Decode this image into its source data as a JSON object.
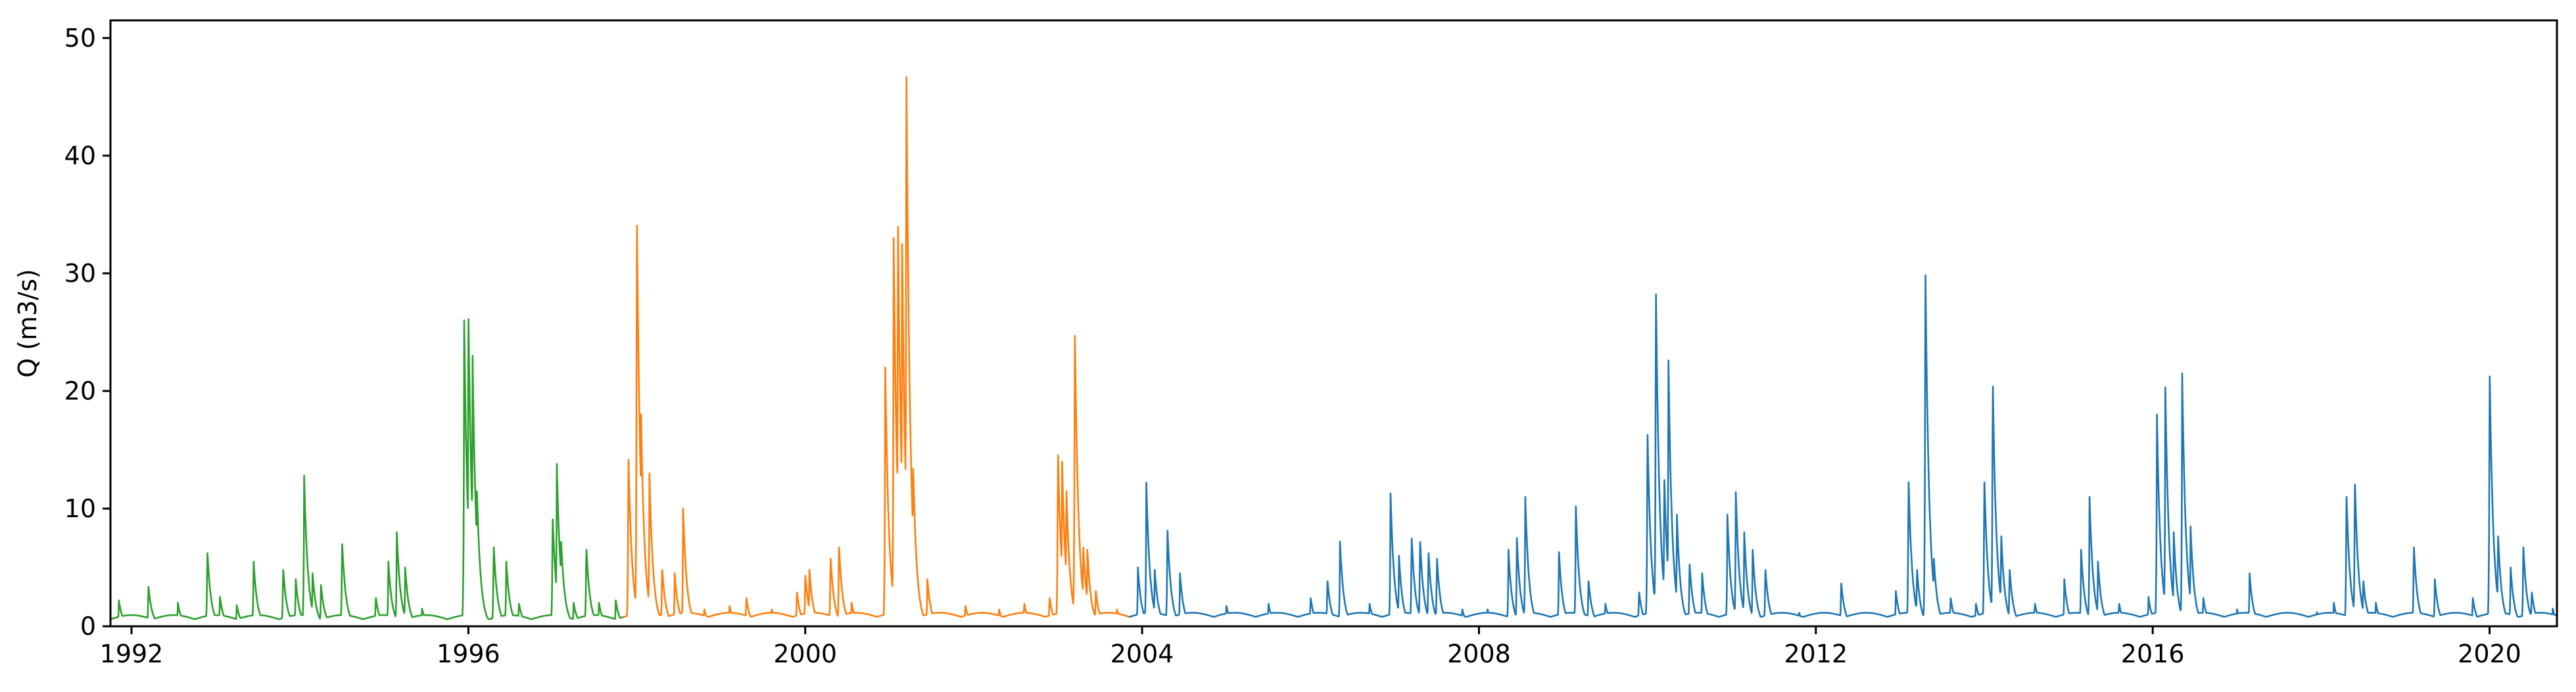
{
  "chart_data": {
    "type": "line",
    "title": "",
    "xlabel": "",
    "ylabel": "Q (m3/s)",
    "xlim": [
      1991.75,
      2020.8
    ],
    "ylim": [
      0,
      51.5
    ],
    "x_ticks": [
      1992,
      1996,
      2000,
      2004,
      2008,
      2012,
      2016,
      2020
    ],
    "x_tick_labels": [
      "1992",
      "1996",
      "2000",
      "2004",
      "2008",
      "2012",
      "2016",
      "2020"
    ],
    "y_ticks": [
      0,
      10,
      20,
      30,
      40,
      50
    ],
    "y_tick_labels": [
      "0",
      "10",
      "20",
      "30",
      "40",
      "50"
    ],
    "grid": false,
    "legend": "none",
    "series": [
      {
        "color": "#2ca02c",
        "x_range": [
          1991.75,
          1997.85
        ],
        "baseflow": 0.6,
        "recession_years": 0.045,
        "peaks": [
          [
            1991.85,
            2.2
          ],
          [
            1992.2,
            3.5
          ],
          [
            1992.55,
            2.0
          ],
          [
            1992.9,
            6.5
          ],
          [
            1993.05,
            2.5
          ],
          [
            1993.25,
            1.8
          ],
          [
            1993.45,
            5.5
          ],
          [
            1993.8,
            5.0
          ],
          [
            1993.95,
            4.0
          ],
          [
            1994.05,
            12.8
          ],
          [
            1994.15,
            4.5
          ],
          [
            1994.25,
            3.5
          ],
          [
            1994.5,
            7.3
          ],
          [
            1994.9,
            2.5
          ],
          [
            1995.05,
            5.5
          ],
          [
            1995.15,
            8.0
          ],
          [
            1995.25,
            5.0
          ],
          [
            1995.45,
            1.5
          ],
          [
            1995.95,
            26.0
          ],
          [
            1996.0,
            27.3
          ],
          [
            1996.05,
            23.0
          ],
          [
            1996.1,
            12.0
          ],
          [
            1996.3,
            7.0
          ],
          [
            1996.45,
            5.5
          ],
          [
            1996.6,
            2.0
          ],
          [
            1997.0,
            9.5
          ],
          [
            1997.05,
            13.8
          ],
          [
            1997.1,
            7.5
          ],
          [
            1997.25,
            2.0
          ],
          [
            1997.4,
            6.8
          ],
          [
            1997.55,
            2.0
          ],
          [
            1997.75,
            2.2
          ]
        ]
      },
      {
        "color": "#ff7f0e",
        "x_range": [
          1997.85,
          2003.85
        ],
        "baseflow": 0.8,
        "recession_years": 0.045,
        "peaks": [
          [
            1997.9,
            14.8
          ],
          [
            1998.0,
            35.6
          ],
          [
            1998.05,
            18.0
          ],
          [
            1998.15,
            13.0
          ],
          [
            1998.3,
            5.0
          ],
          [
            1998.45,
            4.5
          ],
          [
            1998.55,
            10.0
          ],
          [
            1998.8,
            1.5
          ],
          [
            1999.1,
            1.8
          ],
          [
            1999.3,
            2.5
          ],
          [
            1999.6,
            1.5
          ],
          [
            1999.9,
            3.0
          ],
          [
            2000.0,
            4.5
          ],
          [
            2000.05,
            4.8
          ],
          [
            2000.3,
            6.0
          ],
          [
            2000.4,
            7.0
          ],
          [
            2000.55,
            2.0
          ],
          [
            2000.95,
            22.0
          ],
          [
            2001.05,
            33.0
          ],
          [
            2001.1,
            35.5
          ],
          [
            2001.15,
            32.5
          ],
          [
            2001.2,
            48.8
          ],
          [
            2001.28,
            14.0
          ],
          [
            2001.45,
            4.0
          ],
          [
            2001.9,
            1.8
          ],
          [
            2002.3,
            1.5
          ],
          [
            2002.6,
            2.0
          ],
          [
            2002.9,
            2.5
          ],
          [
            2003.0,
            15.2
          ],
          [
            2003.05,
            14.0
          ],
          [
            2003.1,
            12.0
          ],
          [
            2003.2,
            25.8
          ],
          [
            2003.3,
            7.0
          ],
          [
            2003.35,
            6.5
          ],
          [
            2003.45,
            3.0
          ],
          [
            2003.7,
            1.5
          ]
        ]
      },
      {
        "color": "#1f77b4",
        "x_range": [
          2003.85,
          2020.8
        ],
        "baseflow": 0.8,
        "recession_years": 0.045,
        "peaks": [
          [
            2003.95,
            5.0
          ],
          [
            2004.05,
            12.2
          ],
          [
            2004.15,
            4.8
          ],
          [
            2004.3,
            8.5
          ],
          [
            2004.45,
            4.5
          ],
          [
            2005.0,
            1.8
          ],
          [
            2005.5,
            2.0
          ],
          [
            2006.0,
            2.5
          ],
          [
            2006.2,
            4.0
          ],
          [
            2006.35,
            7.2
          ],
          [
            2006.7,
            2.0
          ],
          [
            2006.95,
            11.3
          ],
          [
            2007.05,
            6.0
          ],
          [
            2007.2,
            7.8
          ],
          [
            2007.3,
            7.5
          ],
          [
            2007.4,
            6.5
          ],
          [
            2007.5,
            6.0
          ],
          [
            2007.8,
            1.5
          ],
          [
            2008.1,
            1.5
          ],
          [
            2008.35,
            6.5
          ],
          [
            2008.45,
            7.5
          ],
          [
            2008.55,
            11.0
          ],
          [
            2008.95,
            6.3
          ],
          [
            2009.15,
            10.2
          ],
          [
            2009.3,
            4.0
          ],
          [
            2009.5,
            2.0
          ],
          [
            2009.9,
            3.0
          ],
          [
            2010.0,
            17.0
          ],
          [
            2010.1,
            29.5
          ],
          [
            2010.2,
            13.0
          ],
          [
            2010.25,
            22.6
          ],
          [
            2010.35,
            9.5
          ],
          [
            2010.5,
            5.5
          ],
          [
            2010.65,
            4.5
          ],
          [
            2010.95,
            9.5
          ],
          [
            2011.05,
            11.4
          ],
          [
            2011.15,
            8.0
          ],
          [
            2011.25,
            6.5
          ],
          [
            2011.4,
            5.0
          ],
          [
            2011.8,
            1.2
          ],
          [
            2012.3,
            3.8
          ],
          [
            2012.6,
            1.2
          ],
          [
            2012.95,
            3.0
          ],
          [
            2013.1,
            12.8
          ],
          [
            2013.2,
            5.0
          ],
          [
            2013.3,
            31.2
          ],
          [
            2013.4,
            6.0
          ],
          [
            2013.6,
            2.5
          ],
          [
            2013.9,
            2.0
          ],
          [
            2014.0,
            12.8
          ],
          [
            2014.1,
            21.3
          ],
          [
            2014.2,
            8.0
          ],
          [
            2014.3,
            5.0
          ],
          [
            2014.6,
            2.0
          ],
          [
            2014.95,
            4.0
          ],
          [
            2015.15,
            6.5
          ],
          [
            2015.25,
            11.0
          ],
          [
            2015.35,
            5.5
          ],
          [
            2015.6,
            2.0
          ],
          [
            2015.95,
            2.5
          ],
          [
            2016.05,
            18.0
          ],
          [
            2016.15,
            20.3
          ],
          [
            2016.25,
            8.0
          ],
          [
            2016.35,
            21.5
          ],
          [
            2016.45,
            8.5
          ],
          [
            2016.6,
            2.5
          ],
          [
            2017.0,
            1.5
          ],
          [
            2017.15,
            4.5
          ],
          [
            2017.5,
            1.0
          ],
          [
            2017.95,
            1.2
          ],
          [
            2018.15,
            2.0
          ],
          [
            2018.3,
            11.5
          ],
          [
            2018.4,
            12.6
          ],
          [
            2018.5,
            4.0
          ],
          [
            2018.65,
            2.0
          ],
          [
            2019.1,
            7.0
          ],
          [
            2019.35,
            4.0
          ],
          [
            2019.8,
            2.5
          ],
          [
            2020.0,
            22.2
          ],
          [
            2020.1,
            8.0
          ],
          [
            2020.25,
            5.0
          ],
          [
            2020.4,
            7.0
          ],
          [
            2020.5,
            3.0
          ],
          [
            2020.75,
            1.5
          ]
        ]
      }
    ]
  }
}
